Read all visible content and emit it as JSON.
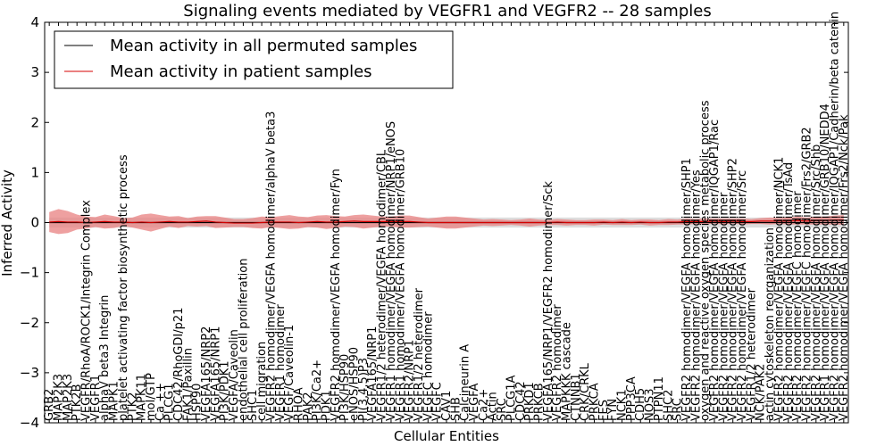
{
  "chart_data": {
    "type": "line",
    "title": "Signaling events mediated by VEGFR1 and VEGFR2 -- 28 samples",
    "xlabel": "Cellular Entities",
    "ylabel": "Inferred Activity",
    "ylim": [
      -4,
      4
    ],
    "yticks": [
      -4,
      -3,
      -2,
      -1,
      0,
      1,
      2,
      3,
      4
    ],
    "legend_position": "top-left",
    "colors": {
      "permuted_line": "#000000",
      "patient_line": "#d40000",
      "patient_band": "#e88080",
      "permuted_band": "#bbbbbb"
    },
    "categories": [
      "GRB2",
      "MAP2K3",
      "MAP2K3",
      "PTK2B",
      "VEGFR/RhoA/ROCK1/Integrin Complex",
      "VEGFR1",
      "alphaV beta3 Integrin",
      "MAPK1",
      "platelet activating factor biosynthetic process",
      "PTK2",
      "MAPK11",
      "mol/GTP",
      "Ca ++",
      "PLCG1",
      "CDC42/RhoGDI/p21",
      "FAK1/Paxillin",
      "HSP90",
      "VEGFA165/NRP2",
      "VEGFA165/NRP1",
      "PI3K/PDK1",
      "VEGFA/Caveolin",
      "endothelial cell proliferation",
      "SHC1",
      "cell migration",
      "VEGFR2 homodimer/VEGFA homodimer/alphaV beta3",
      "VEGFR1 homodimer",
      "VEGF/Caveolin-1",
      "RHOA",
      "PAK2",
      "PI3K/Ca2+",
      "PDK1",
      "VEGFR2 homodimer/VEGFA homodimer/Fyn",
      "PI3K/HSP90",
      "eNOS/HSP90",
      "PI(3,4,5)P3",
      "VEGFA165/NRP1",
      "VEGFR1/2 heterodimer/VEGFA homodimer/CBL",
      "VEGFR1 homodimer/VEGFA homodimer/NRP1/eNOS",
      "VEGFR1 homodimer/VEGFA homodimer/GRB10",
      "VEGFR2/NRP1",
      "VEGFR1/2 heterodimer",
      "VEGFC homodimer",
      "VEGFC",
      "CAV1",
      "SHB",
      "Calcineurin A",
      "VEGFA",
      "Ca2+",
      "Actin",
      "SRC",
      "PLCG1A",
      "CDC42",
      "PRKD1",
      "PRKCB",
      "VEGFA165/NRP1/VEGFR2 homodimer/Sck",
      "VEGFR2 homodimer",
      "MAPKKK cascade",
      "CTNNB1",
      "CRK/CRKL",
      "PRKCA",
      "FES",
      "FYN",
      "NCK1",
      "PPP3CA",
      "CDH5",
      "NOS3",
      "PTPN11",
      "SHC2",
      "SRC",
      "VEGFR2 homodimer/VEGFA homodimer/SHP1",
      "VEGFR2 homodimer/VEGFA homodimer/Yes",
      "oxygen and reactive oxygen species metabolic process",
      "VEGFR2 homodimer/VEGFA homodimer/IQGAP1/Rac",
      "VEGFR2 homodimer/VEGFA homodimer",
      "VEGFR2 homodimer/VEGFA homodimer/SHP2",
      "VEGFR2 homodimer/VEGFA homodimer/Src",
      "VEGFR1/2 heterodimer",
      "NCK/PAK2",
      "actin cytoskeleton reorganization",
      "VEGFR2 homodimer/VEGFA homodimer/NCK1",
      "VEGFR2 homodimer/VEGFA homodimer/TsAd",
      "VEGFR2 homodimer/VEGFC homodimer",
      "VEGFR2 homodimer/VEGFC homodimer/Frs2/GRB2",
      "VEGFR2 homodimer/VEGFA homodimer/Src/Shb",
      "VEGFR1 homodimer/VEGFA homodimer/GRB10/NEDD4",
      "VEGFR2 homodimer/VEGFA homodimer/IQGAP1/Cadherin/beta catenin",
      "VEGFR2 homodimer/VEGFA homodimer/Frs2/Nck/Pak"
    ],
    "series": [
      {
        "name": "Mean activity in all permuted samples",
        "values": [
          0,
          0,
          0,
          0,
          0,
          0,
          0,
          0,
          0,
          0,
          0,
          0,
          0,
          0,
          0,
          0,
          0,
          0,
          0,
          0,
          0,
          0,
          0,
          0,
          0,
          0,
          0,
          0,
          0,
          0,
          0,
          0,
          0,
          0,
          0,
          0,
          0,
          0,
          0,
          0,
          0,
          0,
          0,
          0,
          0,
          0,
          0,
          0,
          0,
          0,
          0,
          0,
          0,
          0,
          0,
          0,
          0,
          0,
          0,
          0,
          0,
          0,
          0,
          0,
          0,
          0,
          0,
          0,
          0,
          0,
          0,
          0,
          0,
          0,
          0,
          0,
          0,
          0,
          0,
          0,
          0,
          0,
          0,
          0,
          0,
          0,
          0
        ]
      },
      {
        "name": "Mean activity in patient samples",
        "values": [
          0.01,
          0.02,
          0.01,
          0.01,
          0.0,
          0.01,
          0.02,
          0.01,
          0.01,
          0.0,
          0.01,
          0.0,
          0.01,
          0.02,
          0.01,
          0.01,
          0.02,
          0.03,
          0.01,
          0.0,
          -0.01,
          -0.01,
          -0.01,
          0.0,
          0.01,
          0.01,
          0.01,
          0.0,
          0.01,
          0.02,
          0.01,
          0.01,
          0.02,
          0.03,
          0.02,
          0.02,
          0.02,
          0.02,
          0.02,
          0.02,
          0.01,
          0.0,
          0.0,
          0.0,
          0.0,
          0.0,
          0.0,
          0.0,
          0.0,
          0.0,
          0.0,
          0.0,
          0.0,
          0.0,
          0.0,
          0.01,
          0.0,
          0.0,
          0.0,
          0.0,
          0.01,
          0.0,
          0.01,
          0.0,
          0.01,
          0.0,
          0.0,
          0.01,
          0.01,
          0.02,
          0.02,
          0.02,
          0.03,
          0.02,
          0.03,
          0.02,
          0.02,
          0.03,
          0.03,
          0.03,
          0.03,
          0.04,
          0.03,
          0.04,
          0.04,
          0.05,
          0.05
        ]
      }
    ],
    "patient_band_halfwidth": [
      0.2,
      0.25,
      0.22,
      0.15,
      0.12,
      0.1,
      0.14,
      0.12,
      0.08,
      0.1,
      0.15,
      0.18,
      0.14,
      0.1,
      0.12,
      0.08,
      0.1,
      0.1,
      0.12,
      0.1,
      0.08,
      0.08,
      0.1,
      0.12,
      0.1,
      0.12,
      0.14,
      0.12,
      0.1,
      0.12,
      0.14,
      0.12,
      0.1,
      0.12,
      0.14,
      0.12,
      0.1,
      0.1,
      0.12,
      0.12,
      0.1,
      0.08,
      0.1,
      0.12,
      0.12,
      0.1,
      0.08,
      0.06,
      0.07,
      0.06,
      0.05,
      0.06,
      0.08,
      0.06,
      0.05,
      0.06,
      0.06,
      0.05,
      0.05,
      0.06,
      0.05,
      0.05,
      0.06,
      0.05,
      0.05,
      0.06,
      0.05,
      0.06,
      0.05,
      0.06,
      0.05,
      0.06,
      0.05,
      0.06,
      0.05,
      0.06,
      0.05,
      0.06,
      0.07,
      0.06,
      0.07,
      0.08,
      0.07,
      0.08,
      0.08,
      0.09,
      0.1
    ],
    "permuted_band_halfwidth": 0.1
  }
}
